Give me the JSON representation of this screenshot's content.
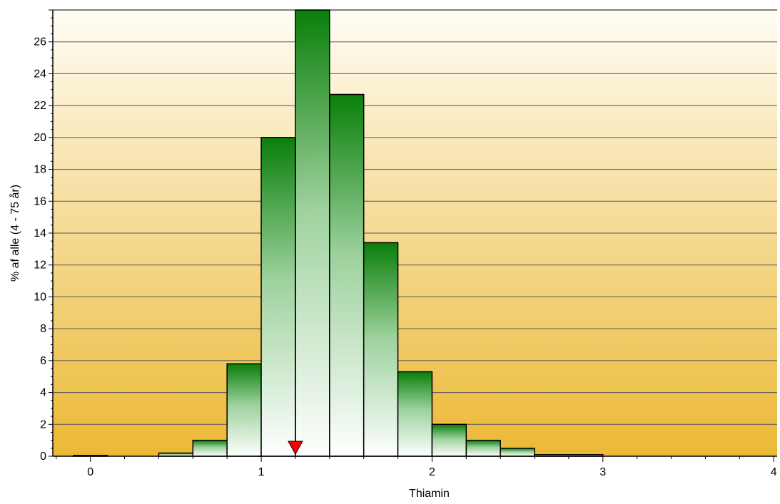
{
  "chart_data": {
    "type": "bar",
    "title": "",
    "xlabel": "Thiamin",
    "ylabel": "% af alle (4 - 75 år)",
    "xlim": [
      -0.22,
      4.02
    ],
    "ylim": [
      0,
      28
    ],
    "xticks": [
      0,
      1,
      2,
      3,
      4
    ],
    "yticks": [
      0,
      2,
      4,
      6,
      8,
      10,
      12,
      14,
      16,
      18,
      20,
      22,
      24,
      26
    ],
    "grid": true,
    "bin_width": 0.2,
    "bins": [
      {
        "x0": -0.1,
        "x1": 0.1,
        "value": 0.05
      },
      {
        "x0": 0.1,
        "x1": 0.2,
        "value": 0.0
      },
      {
        "x0": 0.2,
        "x1": 0.4,
        "value": 0.0
      },
      {
        "x0": 0.4,
        "x1": 0.6,
        "value": 0.2
      },
      {
        "x0": 0.6,
        "x1": 0.8,
        "value": 1.0
      },
      {
        "x0": 0.8,
        "x1": 1.0,
        "value": 5.8
      },
      {
        "x0": 1.0,
        "x1": 1.2,
        "value": 20.0
      },
      {
        "x0": 1.2,
        "x1": 1.4,
        "value": 28.0
      },
      {
        "x0": 1.4,
        "x1": 1.6,
        "value": 22.7
      },
      {
        "x0": 1.6,
        "x1": 1.8,
        "value": 13.4
      },
      {
        "x0": 1.8,
        "x1": 2.0,
        "value": 5.3
      },
      {
        "x0": 2.0,
        "x1": 2.2,
        "value": 2.0
      },
      {
        "x0": 2.2,
        "x1": 2.4,
        "value": 1.0
      },
      {
        "x0": 2.4,
        "x1": 2.6,
        "value": 0.5
      },
      {
        "x0": 2.6,
        "x1": 3.0,
        "value": 0.1
      },
      {
        "x0": 3.0,
        "x1": 4.0,
        "value": 0.0
      }
    ],
    "marker": {
      "x": 1.2,
      "shape": "down-triangle",
      "color": "#ff0000"
    },
    "colors": {
      "bar_dark": "#0a7f0a",
      "bar_light": "#ffffff",
      "bg_top": "#fffdf5",
      "bg_bottom": "#ecb935",
      "grid": "#555555"
    }
  }
}
